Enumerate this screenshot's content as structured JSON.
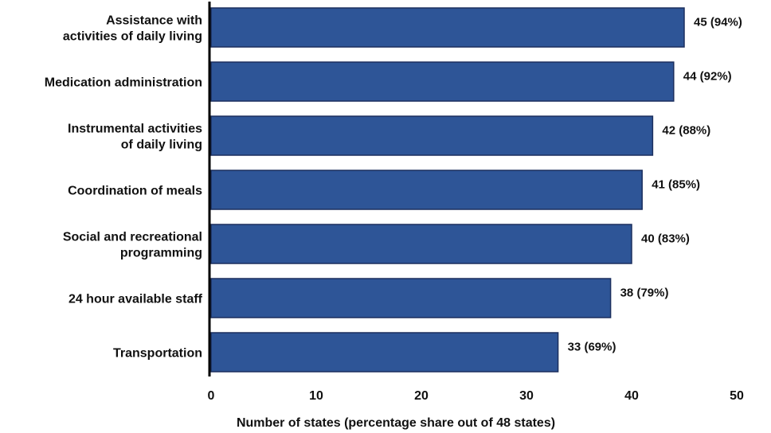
{
  "chart_data": {
    "type": "bar",
    "orientation": "horizontal",
    "categories": [
      [
        "Assistance with",
        "activities of daily living"
      ],
      [
        "Medication administration"
      ],
      [
        "Instrumental activities",
        "of daily living"
      ],
      [
        "Coordination of meals"
      ],
      [
        "Social and recreational",
        "programming"
      ],
      [
        "24 hour available staff"
      ],
      [
        "Transportation"
      ]
    ],
    "values": [
      45,
      44,
      42,
      41,
      40,
      38,
      33
    ],
    "data_labels": [
      "45 (94%)",
      "44 (92%)",
      "42 (88%)",
      "41 (85%)",
      "40 (83%)",
      "38 (79%)",
      "33 (69%)"
    ],
    "xlabel": "Number of states (percentage share out of 48 states)",
    "ylabel": "",
    "xlim": [
      0,
      50
    ],
    "xticks": [
      "0",
      "10",
      "20",
      "30",
      "40",
      "50"
    ],
    "grid": false,
    "bar_color": "#2E5597",
    "bar_edge_color": "#1B2F5E"
  }
}
